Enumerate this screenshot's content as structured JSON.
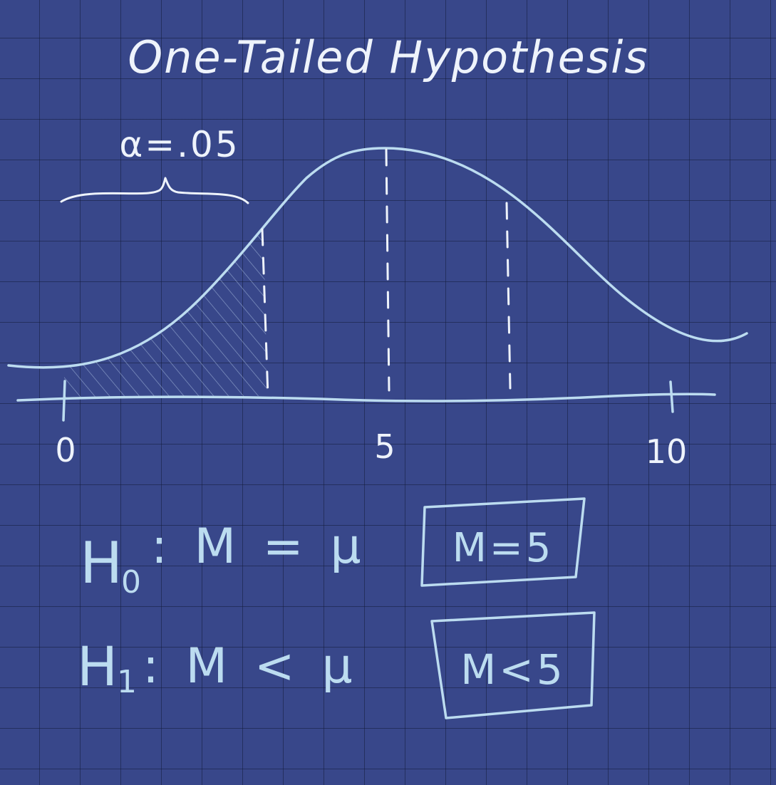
{
  "title": "One-Tailed Hypothesis",
  "alpha_label": "α=.05",
  "axis": {
    "ticks": [
      "0",
      "5",
      "10"
    ]
  },
  "hypotheses": {
    "h0": {
      "symbol": "H",
      "subscript": "0",
      "statement": ": M = μ",
      "boxed": "M=5"
    },
    "h1": {
      "symbol": "H",
      "subscript": "1",
      "statement": ": M < μ",
      "boxed": "M<5"
    }
  },
  "colors": {
    "background": "#38478a",
    "chalk_white": "#eef3fb",
    "chalk_blue": "#bcdcf0",
    "grid": "#141c3c"
  }
}
